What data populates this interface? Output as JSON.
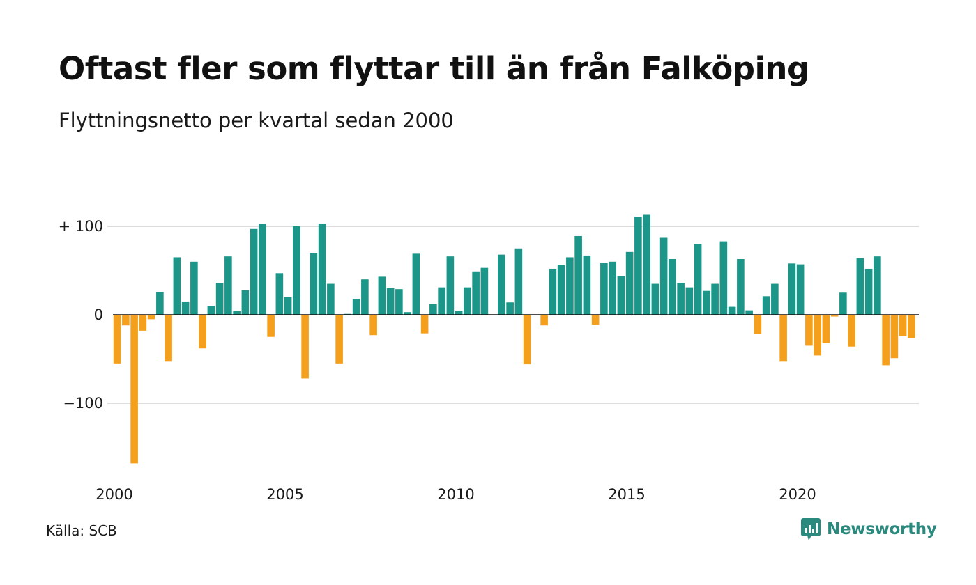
{
  "title": "Oftast fler som flyttar till än från Falköping",
  "subtitle": "Flyttningsnetto per kvartal sedan 2000",
  "source": "Källa: SCB",
  "brand": {
    "name": "Newsworthy",
    "icon": "newsworthy-logo-icon",
    "color": "#2a8a7e"
  },
  "colors": {
    "positive": "#1b9688",
    "negative": "#f5a01c",
    "grid": "#dddddd",
    "zero_line": "#111111"
  },
  "chart_data": {
    "type": "bar",
    "title": "Oftast fler som flyttar till än från Falköping",
    "subtitle": "Flyttningsnetto per kvartal sedan 2000",
    "xlabel": "",
    "ylabel": "",
    "ylim": [
      -170,
      115
    ],
    "y_ticks": [
      {
        "value": 100,
        "label": "+ 100"
      },
      {
        "value": 0,
        "label": "0"
      },
      {
        "value": -100,
        "label": "−100"
      }
    ],
    "x_ticks": [
      {
        "year": 2000,
        "label": "2000"
      },
      {
        "year": 2005,
        "label": "2005"
      },
      {
        "year": 2010,
        "label": "2010"
      },
      {
        "year": 2015,
        "label": "2015"
      },
      {
        "year": 2020,
        "label": "2020"
      }
    ],
    "grid": true,
    "start": "2000 Q1",
    "frequency": "quarterly",
    "values": [
      -55,
      -12,
      -168,
      -18,
      -5,
      26,
      -53,
      65,
      15,
      60,
      -38,
      10,
      36,
      66,
      4,
      28,
      97,
      103,
      -25,
      47,
      20,
      100,
      -72,
      70,
      103,
      35,
      -55,
      1,
      18,
      40,
      -23,
      43,
      30,
      29,
      3,
      69,
      -21,
      12,
      31,
      66,
      4,
      31,
      49,
      53,
      0,
      68,
      14,
      75,
      -56,
      0,
      -12,
      52,
      56,
      65,
      89,
      67,
      -11,
      59,
      60,
      44,
      71,
      111,
      113,
      35,
      87,
      63,
      36,
      31,
      80,
      27,
      35,
      83,
      9,
      63,
      5,
      -22,
      21,
      35,
      -53,
      58,
      57,
      -35,
      -46,
      -32,
      -2,
      25,
      -36,
      64,
      52,
      66,
      -57,
      -49,
      -24,
      -26
    ]
  }
}
